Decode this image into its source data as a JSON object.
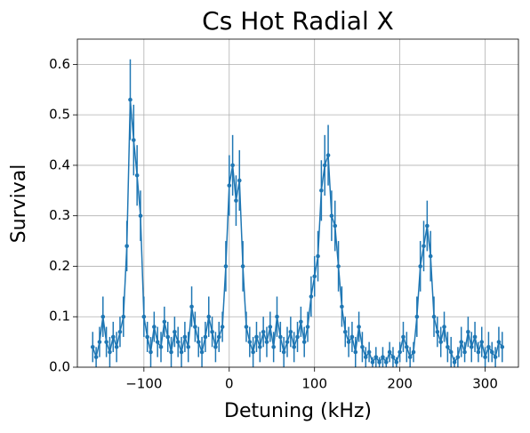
{
  "chart_data": {
    "type": "errorbar",
    "title": "Cs Hot Radial X",
    "xlabel": "Detuning (kHz)",
    "ylabel": "Survival",
    "color": "#1f77b4",
    "grid": true,
    "xlim": [
      -178,
      339
    ],
    "ylim": [
      0,
      0.65
    ],
    "xticks": [
      {
        "value": -100,
        "label": "−100"
      },
      0,
      100,
      200,
      300
    ],
    "yticks": [
      {
        "value": 0,
        "label": "0.0"
      },
      0.1,
      0.2,
      0.3,
      0.4,
      0.5,
      0.6
    ],
    "x": [
      -160,
      -156,
      -152,
      -148,
      -144,
      -140,
      -136,
      -132,
      -128,
      -124,
      -120,
      -116,
      -112,
      -108,
      -104,
      -100,
      -96,
      -92,
      -88,
      -84,
      -80,
      -76,
      -72,
      -68,
      -64,
      -60,
      -56,
      -52,
      -48,
      -44,
      -40,
      -36,
      -32,
      -28,
      -24,
      -20,
      -16,
      -12,
      -8,
      -4,
      0,
      4,
      8,
      12,
      16,
      20,
      24,
      28,
      32,
      36,
      40,
      44,
      48,
      52,
      56,
      60,
      64,
      68,
      72,
      76,
      80,
      84,
      88,
      92,
      96,
      100,
      104,
      108,
      112,
      116,
      120,
      124,
      128,
      132,
      136,
      140,
      144,
      148,
      152,
      156,
      160,
      164,
      168,
      172,
      176,
      180,
      184,
      188,
      192,
      196,
      200,
      204,
      208,
      212,
      216,
      220,
      224,
      228,
      232,
      236,
      240,
      244,
      248,
      252,
      256,
      260,
      264,
      268,
      272,
      276,
      280,
      284,
      288,
      292,
      296,
      300,
      304,
      308,
      312,
      316,
      320
    ],
    "values": [
      0.04,
      0.02,
      0.05,
      0.1,
      0.05,
      0.03,
      0.06,
      0.04,
      0.07,
      0.1,
      0.24,
      0.53,
      0.45,
      0.38,
      0.3,
      0.1,
      0.06,
      0.03,
      0.08,
      0.05,
      0.04,
      0.09,
      0.06,
      0.03,
      0.07,
      0.05,
      0.03,
      0.06,
      0.04,
      0.12,
      0.08,
      0.05,
      0.03,
      0.06,
      0.1,
      0.07,
      0.04,
      0.06,
      0.08,
      0.2,
      0.36,
      0.4,
      0.33,
      0.37,
      0.2,
      0.08,
      0.05,
      0.03,
      0.06,
      0.04,
      0.07,
      0.05,
      0.08,
      0.04,
      0.1,
      0.06,
      0.03,
      0.05,
      0.07,
      0.04,
      0.06,
      0.09,
      0.05,
      0.08,
      0.14,
      0.18,
      0.22,
      0.35,
      0.4,
      0.42,
      0.3,
      0.28,
      0.2,
      0.12,
      0.07,
      0.05,
      0.06,
      0.03,
      0.08,
      0.04,
      0.02,
      0.03,
      0.01,
      0.02,
      0.01,
      0.02,
      0.01,
      0.03,
      0.02,
      0.01,
      0.03,
      0.06,
      0.04,
      0.02,
      0.03,
      0.1,
      0.2,
      0.24,
      0.28,
      0.22,
      0.1,
      0.07,
      0.05,
      0.08,
      0.04,
      0.03,
      0.01,
      0.02,
      0.05,
      0.03,
      0.07,
      0.04,
      0.06,
      0.03,
      0.05,
      0.02,
      0.04,
      0.03,
      0.02,
      0.05,
      0.04
    ],
    "errors": [
      0.03,
      0.02,
      0.03,
      0.04,
      0.03,
      0.03,
      0.03,
      0.03,
      0.03,
      0.04,
      0.05,
      0.08,
      0.07,
      0.06,
      0.05,
      0.04,
      0.03,
      0.03,
      0.03,
      0.03,
      0.03,
      0.03,
      0.03,
      0.03,
      0.03,
      0.03,
      0.03,
      0.03,
      0.03,
      0.04,
      0.03,
      0.03,
      0.03,
      0.03,
      0.04,
      0.03,
      0.03,
      0.03,
      0.03,
      0.05,
      0.06,
      0.06,
      0.05,
      0.06,
      0.05,
      0.03,
      0.03,
      0.03,
      0.03,
      0.03,
      0.03,
      0.03,
      0.03,
      0.03,
      0.04,
      0.03,
      0.03,
      0.03,
      0.03,
      0.03,
      0.03,
      0.03,
      0.03,
      0.03,
      0.04,
      0.04,
      0.05,
      0.06,
      0.06,
      0.06,
      0.05,
      0.05,
      0.05,
      0.04,
      0.03,
      0.03,
      0.03,
      0.03,
      0.03,
      0.03,
      0.02,
      0.02,
      0.01,
      0.02,
      0.01,
      0.02,
      0.01,
      0.02,
      0.02,
      0.01,
      0.02,
      0.03,
      0.03,
      0.02,
      0.02,
      0.04,
      0.05,
      0.05,
      0.05,
      0.05,
      0.04,
      0.03,
      0.03,
      0.03,
      0.03,
      0.03,
      0.01,
      0.02,
      0.03,
      0.02,
      0.03,
      0.03,
      0.03,
      0.02,
      0.03,
      0.02,
      0.03,
      0.02,
      0.02,
      0.03,
      0.03
    ]
  }
}
